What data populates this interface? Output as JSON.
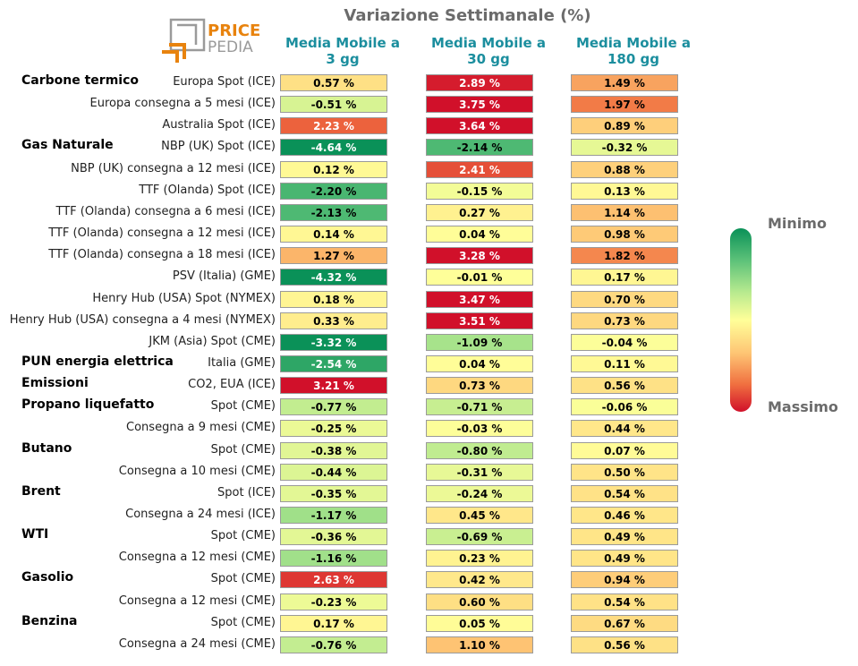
{
  "title": "Variazione Settimanale (%)",
  "logo": {
    "line1": "PRICE",
    "line2": "PEDIA"
  },
  "columns": [
    {
      "line1": "Media Mobile a",
      "line2": "3 gg"
    },
    {
      "line1": "Media Mobile a",
      "line2": "30 gg"
    },
    {
      "line1": "Media Mobile a",
      "line2": "180 gg"
    }
  ],
  "legend": {
    "top": "Minimo",
    "bottom": "Massimo"
  },
  "colors": {
    "header": "#1b8e9e",
    "title": "#6b6b6b",
    "min": "#0a9158",
    "mid": "#ffff99",
    "max": "#d1102a"
  },
  "chart_data": {
    "type": "heatmap",
    "title": "Variazione Settimanale (%)",
    "columns": [
      "Media Mobile a 3 gg",
      "Media Mobile a 30 gg",
      "Media Mobile a 180 gg"
    ],
    "unit": "%",
    "rows": [
      {
        "group": "Carbone termico",
        "label": "Europa Spot (ICE)",
        "values": [
          "0.57 %",
          "2.89 %",
          "1.49 %"
        ]
      },
      {
        "group": "",
        "label": "Europa consegna a 5 mesi (ICE)",
        "values": [
          "-0.51 %",
          "3.75 %",
          "1.97 %"
        ]
      },
      {
        "group": "",
        "label": "Australia Spot (ICE)",
        "values": [
          "2.23 %",
          "3.64 %",
          "0.89 %"
        ]
      },
      {
        "group": "Gas Naturale",
        "label": "NBP (UK) Spot (ICE)",
        "values": [
          "-4.64 %",
          "-2.14 %",
          "-0.32 %"
        ]
      },
      {
        "group": "",
        "label": "NBP (UK) consegna a 12 mesi (ICE)",
        "values": [
          "0.12 %",
          "2.41 %",
          "0.88 %"
        ]
      },
      {
        "group": "",
        "label": "TTF (Olanda) Spot (ICE)",
        "values": [
          "-2.20 %",
          "-0.15 %",
          "0.13 %"
        ]
      },
      {
        "group": "",
        "label": "TTF (Olanda) consegna a 6 mesi (ICE)",
        "values": [
          "-2.13 %",
          "0.27 %",
          "1.14 %"
        ]
      },
      {
        "group": "",
        "label": "TTF (Olanda) consegna a 12 mesi (ICE)",
        "values": [
          "0.14 %",
          "0.04 %",
          "0.98 %"
        ]
      },
      {
        "group": "",
        "label": "TTF (Olanda) consegna a 18 mesi (ICE)",
        "values": [
          "1.27 %",
          "3.28 %",
          "1.82 %"
        ]
      },
      {
        "group": "",
        "label": "PSV (Italia) (GME)",
        "values": [
          "-4.32 %",
          "-0.01 %",
          "0.17 %"
        ]
      },
      {
        "group": "",
        "label": "Henry Hub (USA) Spot (NYMEX)",
        "values": [
          "0.18 %",
          "3.47 %",
          "0.70 %"
        ]
      },
      {
        "group": "",
        "label": "Henry Hub (USA) consegna a 4 mesi (NYMEX)",
        "values": [
          "0.33 %",
          "3.51 %",
          "0.73 %"
        ]
      },
      {
        "group": "",
        "label": "JKM (Asia) Spot (CME)",
        "values": [
          "-3.32 %",
          "-1.09 %",
          "-0.04 %"
        ]
      },
      {
        "group": "PUN energia elettrica",
        "label": "Italia (GME)",
        "values": [
          "-2.54 %",
          "0.04 %",
          "0.11 %"
        ]
      },
      {
        "group": "Emissioni",
        "label": "CO2, EUA (ICE)",
        "values": [
          "3.21 %",
          "0.73 %",
          "0.56 %"
        ]
      },
      {
        "group": "Propano liquefatto",
        "label": "Spot (CME)",
        "values": [
          "-0.77 %",
          "-0.71 %",
          "-0.06 %"
        ]
      },
      {
        "group": "",
        "label": "Consegna a 9 mesi (CME)",
        "values": [
          "-0.25 %",
          "-0.03 %",
          "0.44 %"
        ]
      },
      {
        "group": "Butano",
        "label": "Spot (CME)",
        "values": [
          "-0.38 %",
          "-0.80 %",
          "0.07 %"
        ]
      },
      {
        "group": "",
        "label": "Consegna a 10 mesi (CME)",
        "values": [
          "-0.44 %",
          "-0.31 %",
          "0.50 %"
        ]
      },
      {
        "group": "Brent",
        "label": "Spot (ICE)",
        "values": [
          "-0.35 %",
          "-0.24 %",
          "0.54 %"
        ]
      },
      {
        "group": "",
        "label": "Consegna a 24 mesi (ICE)",
        "values": [
          "-1.17 %",
          "0.45 %",
          "0.46 %"
        ]
      },
      {
        "group": "WTI",
        "label": "Spot (CME)",
        "values": [
          "-0.36 %",
          "-0.69 %",
          "0.49 %"
        ]
      },
      {
        "group": "",
        "label": "Consegna a 12 mesi (CME)",
        "values": [
          "-1.16 %",
          "0.23 %",
          "0.49 %"
        ]
      },
      {
        "group": "Gasolio",
        "label": "Spot (CME)",
        "values": [
          "2.63 %",
          "0.42 %",
          "0.94 %"
        ]
      },
      {
        "group": "",
        "label": "Consegna a 12 mesi (CME)",
        "values": [
          "-0.23 %",
          "0.60 %",
          "0.54 %"
        ]
      },
      {
        "group": "Benzina",
        "label": "Spot (CME)",
        "values": [
          "0.17 %",
          "0.05 %",
          "0.67 %"
        ]
      },
      {
        "group": "",
        "label": "Consegna a 24 mesi (CME)",
        "values": [
          "-0.76 %",
          "1.10 %",
          "0.56 %"
        ]
      }
    ]
  }
}
